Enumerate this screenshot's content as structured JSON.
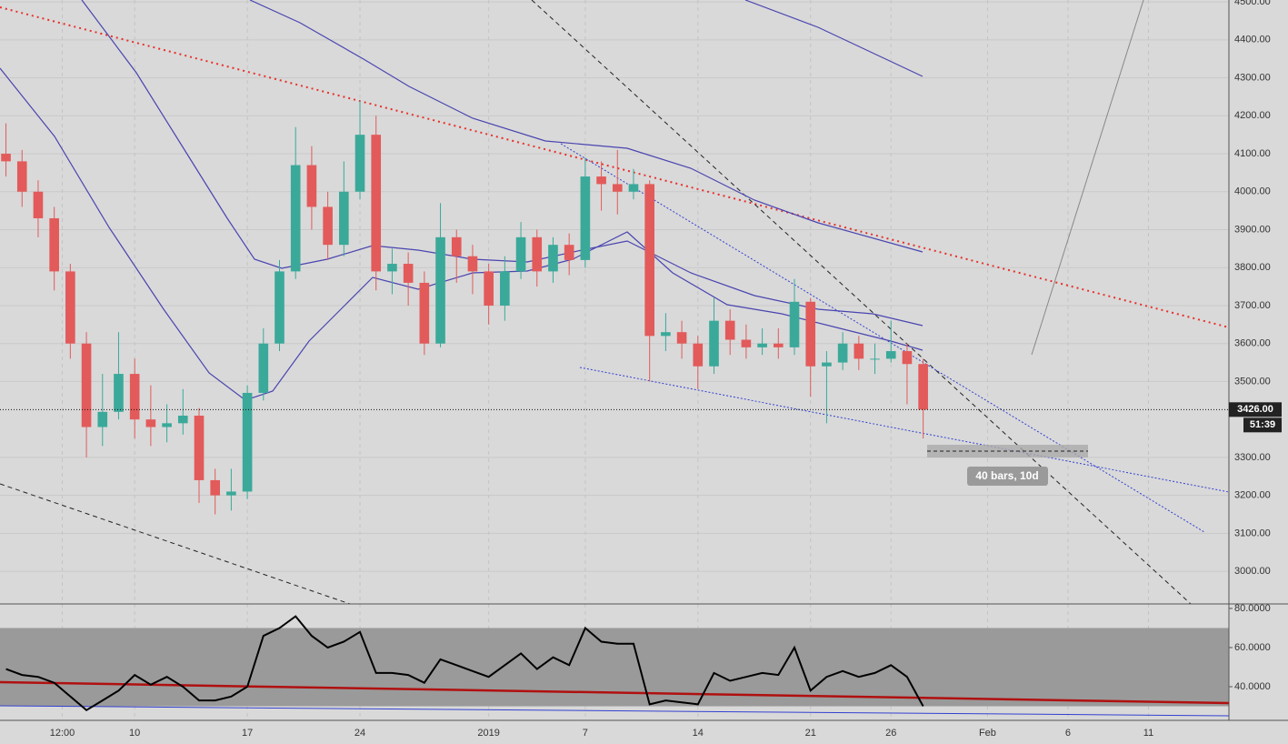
{
  "chart_data": [
    {
      "type": "candlestick",
      "x": [
        2,
        3,
        4,
        5,
        6,
        7,
        8,
        9,
        10,
        11,
        12,
        13,
        14,
        15,
        16,
        17,
        18,
        19,
        20,
        21,
        22,
        23,
        24,
        25,
        26,
        27,
        28,
        29,
        30,
        31,
        32,
        33,
        34,
        35,
        36,
        37,
        38,
        39,
        40,
        41,
        42,
        43,
        44,
        45,
        46,
        47,
        48,
        49,
        50,
        51,
        52,
        53,
        54,
        55,
        56,
        57,
        58,
        59
      ],
      "open": [
        4100,
        4080,
        4000,
        3930,
        3790,
        3600,
        3380,
        3420,
        3520,
        3400,
        3380,
        3390,
        3410,
        3240,
        3200,
        3210,
        3470,
        3600,
        3790,
        4070,
        3960,
        3860,
        4000,
        4150,
        3790,
        3810,
        3760,
        3600,
        3880,
        3830,
        3790,
        3700,
        3790,
        3880,
        3790,
        3860,
        3820,
        4040,
        4020,
        4000,
        4020,
        3620,
        3630,
        3600,
        3540,
        3660,
        3610,
        3590,
        3600,
        3590,
        3710,
        3540,
        3550,
        3600,
        3560,
        3560,
        3580,
        3546
      ],
      "high": [
        4180,
        4110,
        4030,
        3960,
        3810,
        3630,
        3520,
        3630,
        3560,
        3490,
        3440,
        3480,
        3430,
        3270,
        3270,
        3490,
        3640,
        3820,
        4170,
        4120,
        4000,
        4080,
        4240,
        4200,
        3850,
        3840,
        3790,
        3970,
        3900,
        3860,
        3810,
        3830,
        3920,
        3900,
        3880,
        3890,
        4090,
        4080,
        4110,
        4060,
        4030,
        3680,
        3660,
        3620,
        3720,
        3690,
        3650,
        3640,
        3640,
        3770,
        3720,
        3580,
        3630,
        3620,
        3600,
        3660,
        3600,
        3560
      ],
      "low": [
        4040,
        3960,
        3880,
        3740,
        3560,
        3300,
        3330,
        3400,
        3350,
        3330,
        3340,
        3360,
        3180,
        3150,
        3160,
        3190,
        3450,
        3580,
        3770,
        3900,
        3820,
        3830,
        3980,
        3740,
        3730,
        3700,
        3570,
        3590,
        3760,
        3730,
        3650,
        3660,
        3770,
        3750,
        3760,
        3780,
        3800,
        3950,
        3940,
        3980,
        3500,
        3580,
        3560,
        3480,
        3520,
        3570,
        3560,
        3570,
        3560,
        3570,
        3460,
        3390,
        3530,
        3530,
        3520,
        3550,
        3440,
        3350
      ],
      "close": [
        4080,
        4000,
        3930,
        3790,
        3600,
        3380,
        3420,
        3520,
        3400,
        3380,
        3390,
        3410,
        3240,
        3200,
        3210,
        3470,
        3600,
        3790,
        4070,
        3960,
        3860,
        4000,
        4150,
        3790,
        3810,
        3760,
        3600,
        3880,
        3830,
        3790,
        3700,
        3790,
        3880,
        3790,
        3860,
        3820,
        4040,
        4020,
        4000,
        4020,
        3620,
        3630,
        3600,
        3540,
        3660,
        3610,
        3590,
        3600,
        3590,
        3710,
        3540,
        3550,
        3600,
        3560,
        3560,
        3580,
        3546,
        3426
      ],
      "up_color": "#3aa99a",
      "down_color": "#e35a5a",
      "xlim": [
        1.63,
        78
      ],
      "xticks": [
        {
          "value": 5.5,
          "label": "12:00"
        },
        10,
        17,
        24,
        {
          "value": 32,
          "label": "2019"
        },
        {
          "value": 38,
          "label": "7"
        },
        {
          "value": 45,
          "label": "14"
        },
        {
          "value": 52,
          "label": "21"
        },
        {
          "value": 57,
          "label": "26"
        },
        {
          "value": 63,
          "label": "Feb"
        },
        {
          "value": 68,
          "label": "6"
        },
        {
          "value": 73,
          "label": "11"
        }
      ],
      "ylim": [
        2914,
        4505
      ],
      "yticks": [
        {
          "value": 4500,
          "label": "4500.00"
        },
        {
          "value": 4400,
          "label": "4400.00"
        },
        {
          "value": 4300,
          "label": "4300.00"
        },
        {
          "value": 4200,
          "label": "4200.00"
        },
        {
          "value": 4100,
          "label": "4100.00"
        },
        {
          "value": 4000,
          "label": "4000.00"
        },
        {
          "value": 3900,
          "label": "3900.00"
        },
        {
          "value": 3800,
          "label": "3800.00"
        },
        {
          "value": 3700,
          "label": "3700.00"
        },
        {
          "value": 3600,
          "label": "3600.00"
        },
        {
          "value": 3500,
          "label": "3500.00"
        },
        {
          "value": 3300,
          "label": "3300.00"
        },
        {
          "value": 3200,
          "label": "3200.00"
        },
        {
          "value": 3100,
          "label": "3100.00"
        },
        {
          "value": 3000,
          "label": "3000.00"
        }
      ],
      "grid": true,
      "last_price": {
        "value": 3426,
        "label": "3426.00"
      },
      "countdown": "51:39",
      "annotation": "40 bars, 10d"
    },
    {
      "type": "line",
      "x": [
        2,
        3,
        4,
        5,
        6,
        7,
        8,
        9,
        10,
        11,
        12,
        13,
        14,
        15,
        16,
        17,
        18,
        19,
        20,
        21,
        22,
        23,
        24,
        25,
        26,
        27,
        28,
        29,
        30,
        31,
        32,
        33,
        34,
        35,
        36,
        37,
        38,
        39,
        40,
        41,
        42,
        43,
        44,
        45,
        46,
        47,
        48,
        49,
        50,
        51,
        52,
        53,
        54,
        55,
        56,
        57,
        58,
        59
      ],
      "values": [
        49,
        46,
        45,
        42,
        35,
        28,
        33,
        38,
        46,
        41,
        45,
        40,
        33,
        33,
        35,
        40,
        66,
        70,
        76,
        66,
        60,
        63,
        68,
        47,
        47,
        46,
        42,
        54,
        51,
        48,
        45,
        51,
        57,
        49,
        55,
        51,
        70,
        63,
        62,
        62,
        31,
        33,
        32,
        31,
        47,
        43,
        45,
        47,
        46,
        60,
        38,
        45,
        48,
        45,
        47,
        51,
        45,
        30
      ],
      "color": "#000000",
      "band": [
        30,
        70
      ],
      "xlim": [
        1.63,
        78
      ],
      "ylim": [
        22.8,
        82.3
      ],
      "yticks": [
        {
          "value": 80,
          "label": "80.0000"
        },
        {
          "value": 60,
          "label": "60.0000"
        },
        {
          "value": 40,
          "label": "40.0000"
        }
      ]
    }
  ]
}
